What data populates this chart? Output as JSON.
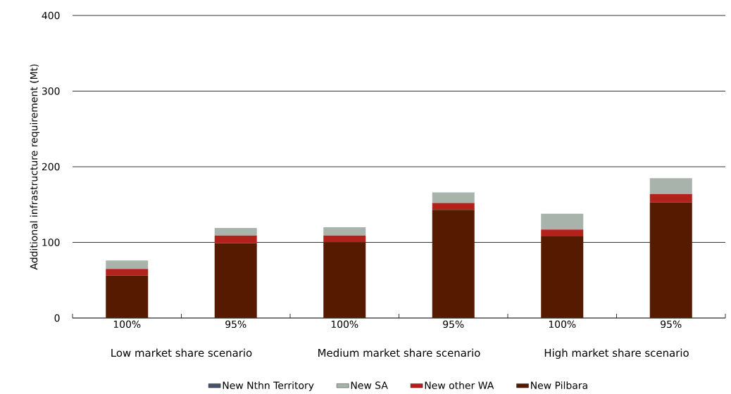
{
  "chart_data": {
    "type": "bar",
    "stacked": true,
    "ylabel": "Additional infrastructure requirement (Mt)",
    "categories": [
      "100%",
      "95%",
      "100%",
      "95%",
      "100%",
      "95%"
    ],
    "series": [
      {
        "name": "New Pilbara",
        "color": "#561a00",
        "values": [
          56,
          99,
          100,
          143,
          108,
          153
        ]
      },
      {
        "name": "New other WA",
        "color": "#b2221b",
        "values": [
          9,
          10,
          9,
          9,
          9,
          11
        ]
      },
      {
        "name": "New SA",
        "color": "#a8b4ab",
        "values": [
          11,
          10,
          11,
          14,
          21,
          21
        ]
      },
      {
        "name": "New Nthn Territory",
        "color": "#44546a",
        "values": [
          0,
          0,
          0,
          0,
          0,
          0
        ]
      }
    ],
    "annotations": [
      "Low market share scenario",
      "Medium market share  scenario",
      "High market share scenario"
    ],
    "ylim": [
      0,
      400
    ],
    "yticks": [
      0,
      100,
      200,
      300,
      400
    ],
    "grid": "y",
    "legend": "bottom"
  }
}
